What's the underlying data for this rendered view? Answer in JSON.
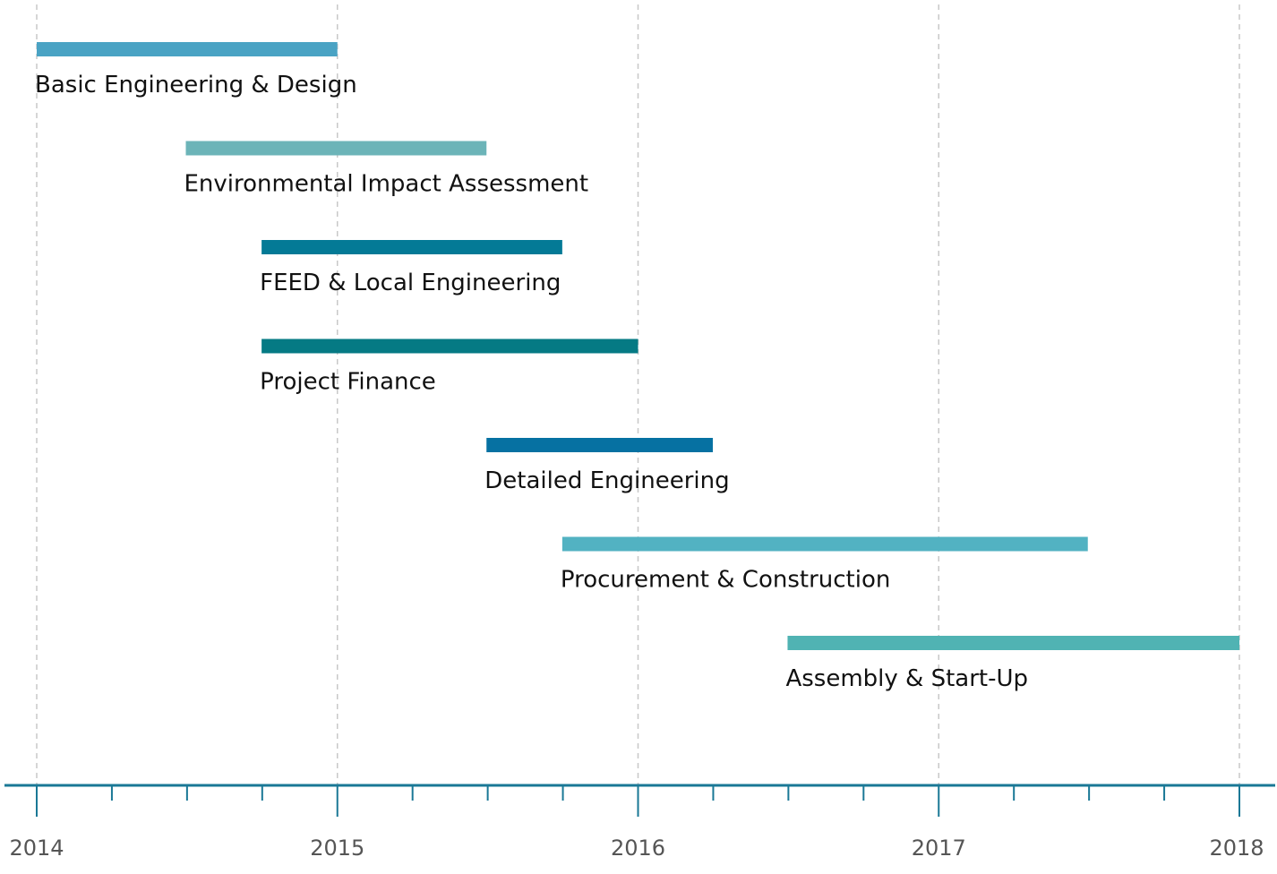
{
  "chart_data": {
    "type": "gantt",
    "x_axis": {
      "ticks": [
        "2014",
        "2015",
        "2016",
        "2017",
        "2018"
      ],
      "range": [
        "2014-01-01",
        "2018-01-01"
      ],
      "minor_tick_interval": "quarter"
    },
    "grid": {
      "vertical": true,
      "style": "dashed"
    },
    "tasks": [
      {
        "name": "Basic Engineering & Design",
        "start": "2014-01-01",
        "end": "2015-01-01",
        "color": "#4aa3c4"
      },
      {
        "name": "Environmental Impact Assessment",
        "start": "2014-07-01",
        "end": "2015-07-01",
        "color": "#6cb4b8"
      },
      {
        "name": "FEED & Local Engineering",
        "start": "2014-10-01",
        "end": "2015-10-01",
        "color": "#047a96"
      },
      {
        "name": "Project Finance",
        "start": "2014-10-01",
        "end": "2016-01-01",
        "color": "#057a84"
      },
      {
        "name": "Detailed Engineering",
        "start": "2015-07-01",
        "end": "2016-04-01",
        "color": "#0671a2"
      },
      {
        "name": "Procurement & Construction",
        "start": "2015-10-01",
        "end": "2017-07-01",
        "color": "#52b2c2"
      },
      {
        "name": "Assembly & Start-Up",
        "start": "2016-07-01",
        "end": "2018-01-01",
        "color": "#50b3b3"
      }
    ],
    "axis_color": "#1a7896"
  }
}
